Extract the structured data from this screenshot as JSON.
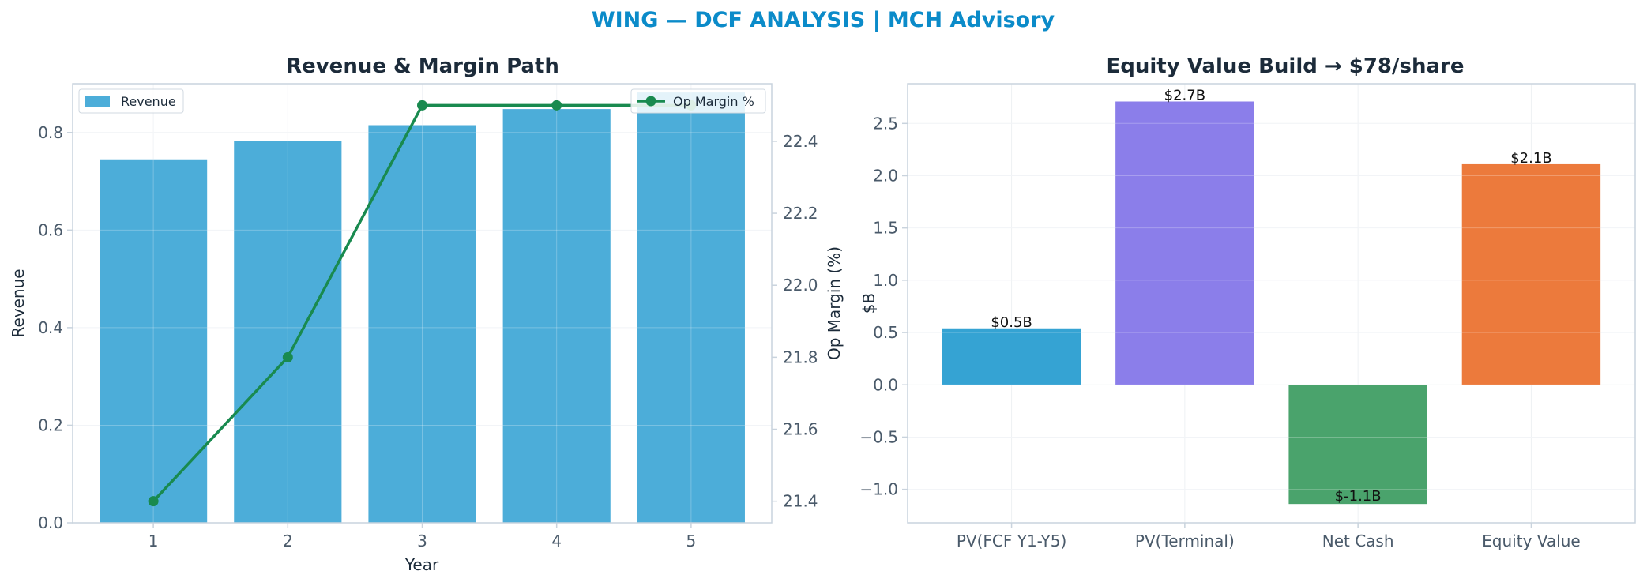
{
  "suptitle": "WING — DCF ANALYSIS | MCH Advisory",
  "colors": {
    "title": "#0b8bc9",
    "subtitle": "#1c2b3a",
    "tick": "#4a5a6a",
    "axis": "#c9d3dd",
    "grid": "#eef1f4",
    "revenue_bar": "#4cadd9",
    "margin_line": "#198a4f",
    "wf_pv_fcf": "#35a3d3",
    "wf_pv_terminal": "#8b7eea",
    "wf_net_cash": "#4aa36c",
    "wf_equity": "#ec7a3c"
  },
  "chart_data": [
    {
      "type": "bar",
      "title": "Revenue & Margin Path",
      "xlabel": "Year",
      "ylabel": "Revenue",
      "y2label": "Op Margin (%)",
      "categories": [
        "1",
        "2",
        "3",
        "4",
        "5"
      ],
      "series": [
        {
          "name": "Revenue",
          "type": "bar",
          "axis": "left",
          "values": [
            0.745,
            0.783,
            0.815,
            0.848,
            0.882
          ]
        },
        {
          "name": "Op Margin %",
          "type": "line",
          "axis": "right",
          "values": [
            21.4,
            21.8,
            22.5,
            22.5,
            22.5
          ]
        }
      ],
      "ylim": [
        0,
        0.9
      ],
      "yticks": [
        0.0,
        0.2,
        0.4,
        0.6,
        0.8
      ],
      "ytick_labels": [
        "0.0",
        "0.2",
        "0.4",
        "0.6",
        "0.8"
      ],
      "y2lim": [
        21.34,
        22.56
      ],
      "y2ticks": [
        21.4,
        21.6,
        21.8,
        22.0,
        22.2,
        22.4
      ],
      "y2tick_labels": [
        "21.4",
        "21.6",
        "21.8",
        "22.0",
        "22.2",
        "22.4"
      ],
      "legend": [
        "Revenue",
        "Op Margin %"
      ],
      "grid": true
    },
    {
      "type": "bar",
      "title": "Equity Value Build → $78/share",
      "xlabel": "",
      "ylabel": "$B",
      "categories": [
        "PV(FCF Y1-Y5)",
        "PV(Terminal)",
        "Net Cash",
        "Equity Value"
      ],
      "values": [
        0.54,
        2.71,
        -1.14,
        2.11
      ],
      "data_labels": [
        "$0.5B",
        "$2.7B",
        "$-1.1B",
        "$2.1B"
      ],
      "ylim": [
        -1.32,
        2.88
      ],
      "yticks": [
        -1.0,
        -0.5,
        0.0,
        0.5,
        1.0,
        1.5,
        2.0,
        2.5
      ],
      "ytick_labels": [
        "−1.0",
        "−0.5",
        "0.0",
        "0.5",
        "1.0",
        "1.5",
        "2.0",
        "2.5"
      ],
      "grid": true
    }
  ]
}
